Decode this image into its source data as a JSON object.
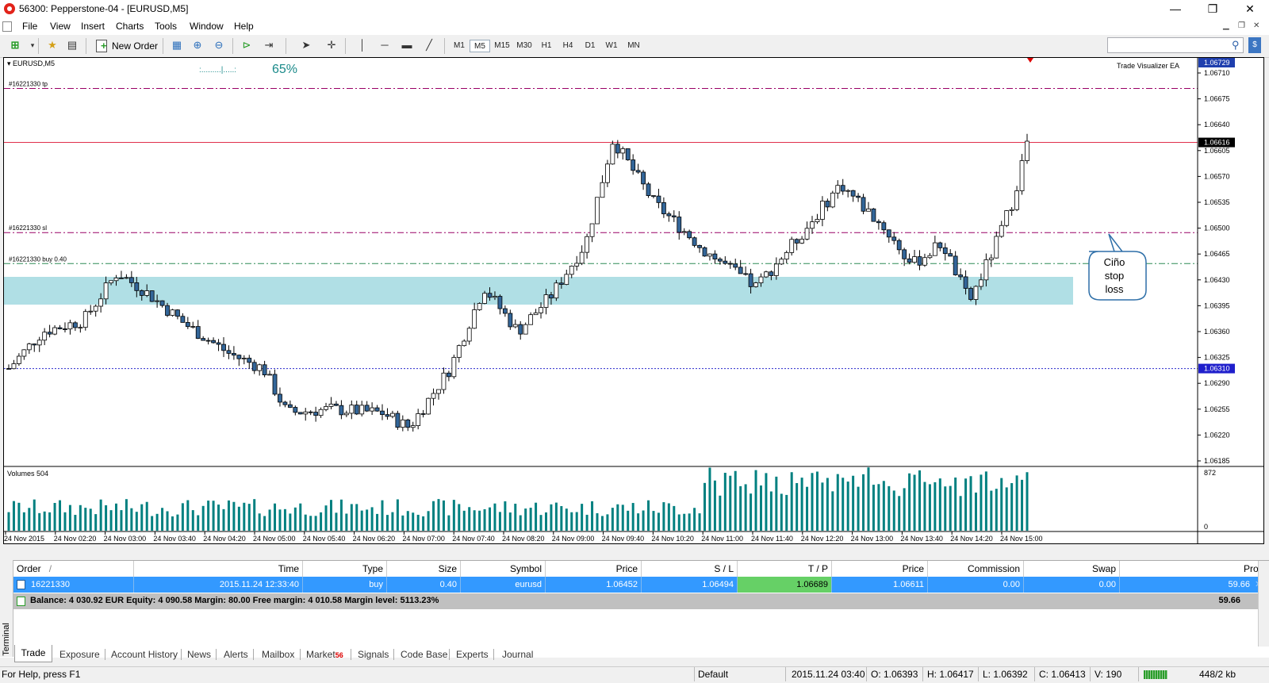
{
  "window": {
    "title": "56300: Pepperstone-04 - [EURUSD,M5]",
    "controls": {
      "minimize": "—",
      "maximize": "❐",
      "close": "✕"
    }
  },
  "menu": [
    "File",
    "View",
    "Insert",
    "Charts",
    "Tools",
    "Window",
    "Help"
  ],
  "toolbar": {
    "new_order_label": "New Order",
    "timeframes": [
      "M1",
      "M5",
      "M15",
      "M30",
      "H1",
      "H4",
      "D1",
      "W1",
      "MN"
    ],
    "active_timeframe": "M5"
  },
  "chart": {
    "symbol_label": "EURUSD,M5",
    "progress_text": ":.........|.....:",
    "progress_percent_text": "65%",
    "ea_label": "Trade Visualizer EA",
    "lines": {
      "tp_label": "#16221330 tp",
      "sl_label": "#16221330 sl",
      "entry_label": "#16221330 buy 0.40"
    },
    "callout_lines": [
      "Ciño",
      "stop",
      "loss"
    ],
    "price_labels": [
      "1.06710",
      "1.06675",
      "1.06640",
      "1.06605",
      "1.06570",
      "1.06535",
      "1.06500",
      "1.06465",
      "1.06430",
      "1.06395",
      "1.06360",
      "1.06325",
      "1.06290",
      "1.06255",
      "1.06220",
      "1.06185"
    ],
    "price_highlights": {
      "top": "1.06729",
      "bid": "1.06616",
      "low": "1.06310"
    },
    "colors": {
      "bull": "#ffffff",
      "bear": "#336699",
      "tp_sl": "#990066",
      "bid": "#e0304c",
      "entry": "#2e8b57",
      "low": "#2b2bcc",
      "zone": "#b0dfe5",
      "volume": "#008080"
    },
    "volumes_label": "Volumes 504",
    "volume_max_label": "872",
    "volume_zero_label": "0",
    "time_labels": [
      "24 Nov 2015",
      "24 Nov 02:20",
      "24 Nov 03:00",
      "24 Nov 03:40",
      "24 Nov 04:20",
      "24 Nov 05:00",
      "24 Nov 05:40",
      "24 Nov 06:20",
      "24 Nov 07:00",
      "24 Nov 07:40",
      "24 Nov 08:20",
      "24 Nov 09:00",
      "24 Nov 09:40",
      "24 Nov 10:20",
      "24 Nov 11:00",
      "24 Nov 11:40",
      "24 Nov 12:20",
      "24 Nov 13:00",
      "24 Nov 13:40",
      "24 Nov 14:20",
      "24 Nov 15:00"
    ]
  },
  "chart_tabs": [],
  "terminal": {
    "side_label": "Terminal",
    "headers": {
      "order": "Order",
      "sort": "/",
      "time": "Time",
      "type": "Type",
      "size": "Size",
      "symbol": "Symbol",
      "price": "Price",
      "sl": "S / L",
      "tp": "T / P",
      "price2": "Price",
      "commission": "Commission",
      "swap": "Swap",
      "profit": "Profit"
    },
    "row": {
      "order": "16221330",
      "time": "2015.11.24 12:33:40",
      "type": "buy",
      "size": "0.40",
      "symbol": "eurusd",
      "price": "1.06452",
      "sl": "1.06494",
      "tp": "1.06689",
      "price2": "1.06611",
      "commission": "0.00",
      "swap": "0.00",
      "profit": "59.66",
      "close": "✕"
    },
    "balance_text": "Balance: 4 030.92 EUR  Equity: 4 090.58  Margin: 80.00  Free margin: 4 010.58  Margin level: 5113.23%",
    "balance_profit": "59.66",
    "tabs": [
      {
        "label": "Trade"
      },
      {
        "label": "Exposure"
      },
      {
        "label": "Account History"
      },
      {
        "label": "News"
      },
      {
        "label": "Alerts"
      },
      {
        "label": "Mailbox"
      },
      {
        "label": "Market",
        "badge": "56"
      },
      {
        "label": "Signals"
      },
      {
        "label": "Code Base"
      },
      {
        "label": "Experts"
      },
      {
        "label": "Journal"
      }
    ]
  },
  "status": {
    "help": "For Help, press F1",
    "profile": "Default",
    "datetime": "2015.11.24 03:40",
    "open": "O: 1.06393",
    "high": "H: 1.06417",
    "low": "L: 1.06392",
    "close": "C: 1.06413",
    "volume": "V: 190",
    "traffic": "448/2 kb"
  }
}
